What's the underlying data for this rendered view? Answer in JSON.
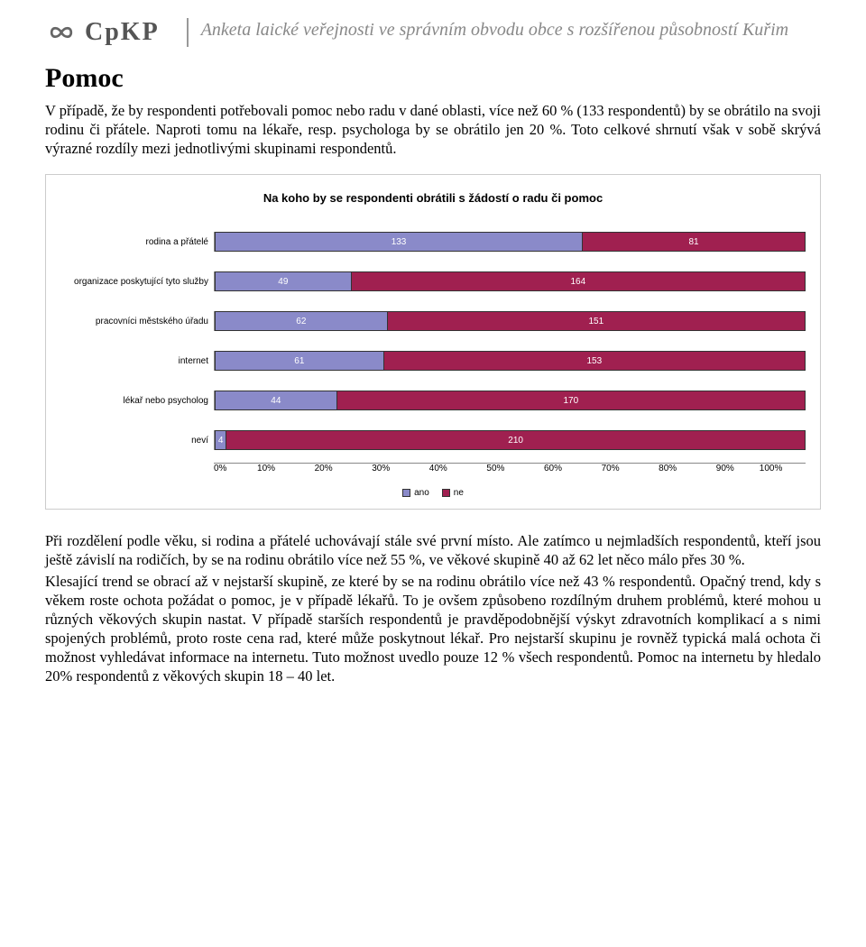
{
  "header": {
    "logo_text": "CpKP",
    "title_html": "Anketa laické veřejnosti ve správním obvodu obce s rozšířenou působností Kuřim"
  },
  "section_title": "Pomoc",
  "intro_paragraph": "V případě, že by respondenti potřebovali pomoc nebo radu v dané oblasti, více než 60 % (133 respondentů) by se obrátilo na svoji rodinu či přátele. Naproti tomu na lékaře, resp. psychologa by se obrátilo jen 20 %. Toto celkové shrnutí však v sobě skrývá výrazné rozdíly mezi jednotlivými skupinami respondentů.",
  "chart": {
    "type": "stacked-bar-horizontal",
    "title": "Na koho by se respondenti obrátili s žádostí o radu či pomoc",
    "categories": [
      "rodina a přátelé",
      "organizace poskytující tyto služby",
      "pracovníci městského úřadu",
      "internet",
      "lékař nebo psycholog",
      "neví"
    ],
    "series": [
      {
        "name": "ano",
        "color": "#8a8ac9",
        "values": [
          133,
          49,
          62,
          61,
          44,
          4
        ]
      },
      {
        "name": "ne",
        "color": "#a02050",
        "values": [
          81,
          164,
          151,
          153,
          170,
          210
        ]
      }
    ],
    "x_axis_ticks": [
      "0%",
      "10%",
      "20%",
      "30%",
      "40%",
      "50%",
      "60%",
      "70%",
      "80%",
      "90%",
      "100%"
    ],
    "legend": [
      "ano",
      "ne"
    ],
    "bar_fontsize": 10,
    "title_fontsize": 13,
    "background_color": "#ffffff",
    "border_color": "#cccccc"
  },
  "closing_paragraphs": [
    "Při rozdělení podle věku, si rodina a přátelé uchovávají stále své první místo. Ale zatímco u nejmladších respondentů, kteří jsou ještě závislí na rodičích, by se na rodinu obrátilo více než 55 %, ve věkové skupině 40 až 62 let něco málo přes 30 %.",
    "Klesající trend se obrací až v nejstarší skupině, ze které by se na rodinu obrátilo více než 43 % respondentů. Opačný trend, kdy s věkem roste ochota požádat o pomoc, je v případě lékařů. To je ovšem způsobeno rozdílným druhem problémů, které mohou u různých věkových skupin nastat. V případě starších respondentů je pravděpodobnější výskyt zdravotních komplikací a s nimi spojených problémů, proto roste cena rad, které může poskytnout lékař. Pro nejstarší skupinu je rovněž typická malá ochota či možnost vyhledávat informace na internetu. Tuto možnost uvedlo pouze 12 % všech respondentů. Pomoc na internetu by hledalo 20% respondentů z věkových skupin 18 – 40 let."
  ]
}
